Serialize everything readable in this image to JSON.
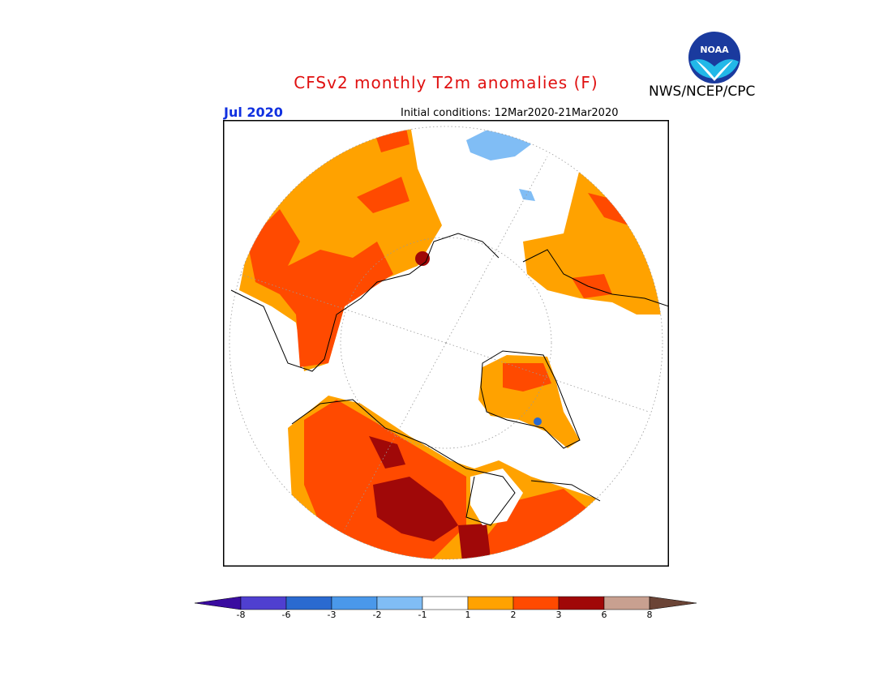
{
  "header": {
    "title": "CFSv2 monthly T2m anomalies (F)",
    "agency": "NWS/NCEP/CPC",
    "logo_text": "NOAA",
    "valid_month": "Jul 2020",
    "initial_conditions": "Initial conditions: 12Mar2020-21Mar2020"
  },
  "colorbar": {
    "ticks": [
      "-8",
      "-6",
      "-3",
      "-2",
      "-1",
      "1",
      "2",
      "3",
      "6",
      "8"
    ],
    "colors": [
      "#3a0ca0",
      "#4f3fd0",
      "#2a6ad0",
      "#4a98ea",
      "#80bdf5",
      "#ffffff",
      "#ffa200",
      "#ff4a00",
      "#a00808",
      "#c8a090",
      "#6b4436"
    ]
  },
  "map": {
    "projection": "polar stereographic, north pole",
    "anomaly_colors": {
      "neg1_neg2": "#80bdf5",
      "neg2_neg3": "#4a98ea",
      "pos1_pos2": "#ffa200",
      "pos2_pos3": "#ff4a00",
      "pos3_pos6": "#a00808"
    }
  }
}
